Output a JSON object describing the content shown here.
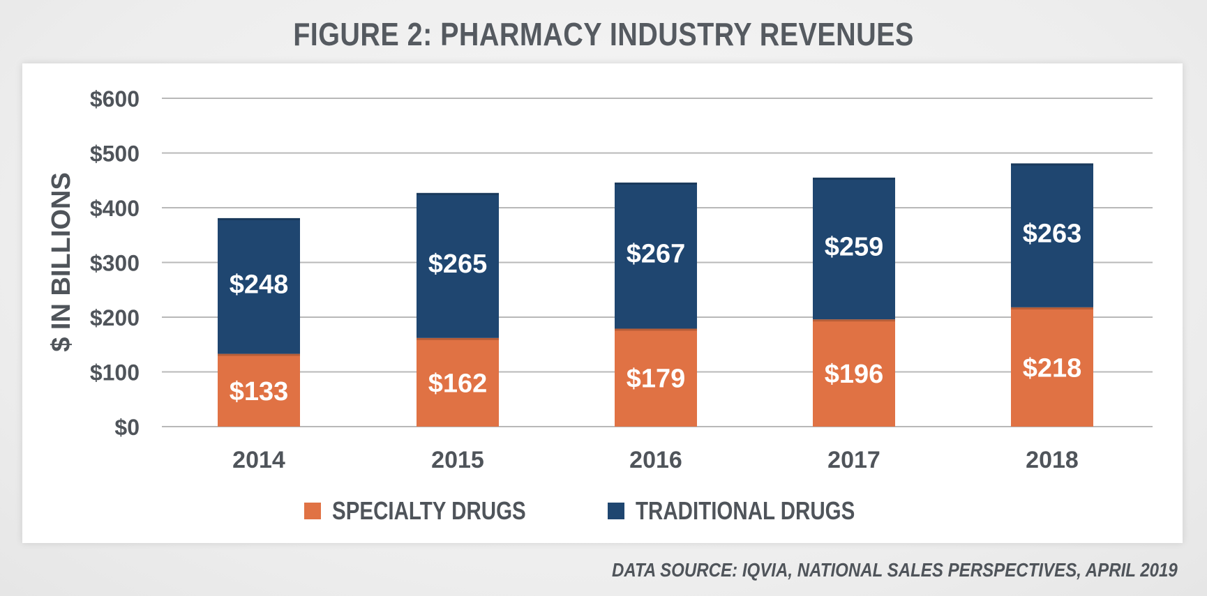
{
  "header": {
    "title": "FIGURE 2: PHARMACY INDUSTRY REVENUES"
  },
  "colors": {
    "specialty": "#e07244",
    "traditional": "#1f4670",
    "text": "#4f545a",
    "grid": "#b8b8b8"
  },
  "legend": {
    "items": [
      {
        "label": "SPECIALTY DRUGS",
        "color": "#e07244"
      },
      {
        "label": "TRADITIONAL DRUGS",
        "color": "#1f4670"
      }
    ]
  },
  "footer": {
    "source": "DATA SOURCE: IQVIA, NATIONAL SALES PERSPECTIVES, APRIL 2019"
  },
  "chart_data": {
    "type": "bar",
    "stacked": true,
    "title": "FIGURE 2: PHARMACY INDUSTRY REVENUES",
    "xlabel": "",
    "ylabel": "$ IN BILLIONS",
    "categories": [
      "2014",
      "2015",
      "2016",
      "2017",
      "2018"
    ],
    "series": [
      {
        "name": "SPECIALTY DRUGS",
        "values": [
          133,
          162,
          179,
          196,
          218
        ],
        "labels": [
          "$133",
          "$162",
          "$179",
          "$196",
          "$218"
        ],
        "color": "#e07244"
      },
      {
        "name": "TRADITIONAL DRUGS",
        "values": [
          248,
          265,
          267,
          259,
          263
        ],
        "labels": [
          "$248",
          "$265",
          "$267",
          "$259",
          "$263"
        ],
        "color": "#1f4670"
      }
    ],
    "ylim": [
      0,
      600
    ],
    "yticks": [
      0,
      100,
      200,
      300,
      400,
      500,
      600
    ],
    "ytick_labels": [
      "$0",
      "$100",
      "$200",
      "$300",
      "$400",
      "$500",
      "$600"
    ],
    "grid": true,
    "legend_position": "bottom-center"
  }
}
